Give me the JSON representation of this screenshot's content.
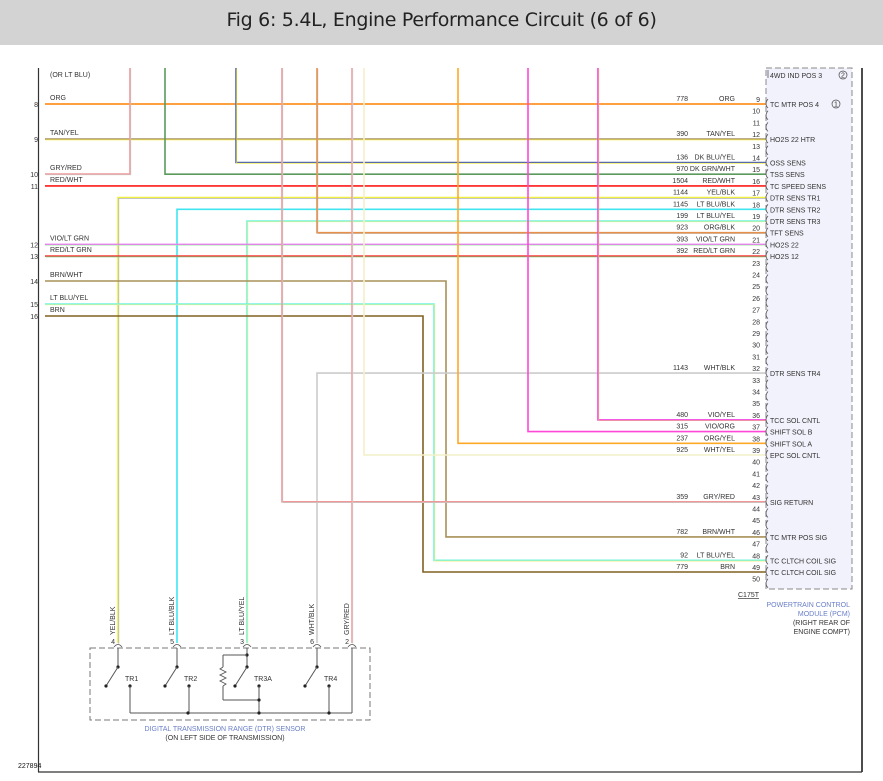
{
  "header": {
    "title": "Fig 6: 5.4L, Engine Performance Circuit (6 of 6)"
  },
  "figure_id": "227894",
  "top_note": "(OR LT BLU)",
  "pcm": {
    "connector": "C175T",
    "name_line1": "POWERTRAIN CONTROL",
    "name_line2": "MODULE (PCM)",
    "loc_line1": "(RIGHT REAR OF",
    "loc_line2": "ENGINE COMPT)",
    "top_pin_label": "4WD IND POS 3",
    "top_pin_note": "2",
    "pin_range": [
      9,
      50
    ],
    "pin_labels": [
      {
        "pin": 9,
        "label": "TC MTR POS 4",
        "note": "1"
      },
      {
        "pin": 12,
        "label": "HO2S 22 HTR"
      },
      {
        "pin": 14,
        "label": "OSS SENS"
      },
      {
        "pin": 15,
        "label": "TSS SENS"
      },
      {
        "pin": 16,
        "label": "TC SPEED SENS"
      },
      {
        "pin": 17,
        "label": "DTR SENS TR1"
      },
      {
        "pin": 18,
        "label": "DTR SENS TR2"
      },
      {
        "pin": 19,
        "label": "DTR SENS TR3"
      },
      {
        "pin": 20,
        "label": "TFT SENS"
      },
      {
        "pin": 21,
        "label": "HO2S 22"
      },
      {
        "pin": 22,
        "label": "HO2S 12"
      },
      {
        "pin": 32,
        "label": "DTR SENS TR4"
      },
      {
        "pin": 36,
        "label": "TCC SOL CNTL"
      },
      {
        "pin": 37,
        "label": "SHIFT SOL B"
      },
      {
        "pin": 38,
        "label": "SHIFT SOL A"
      },
      {
        "pin": 39,
        "label": "EPC SOL CNTL"
      },
      {
        "pin": 43,
        "label": "SIG RETURN"
      },
      {
        "pin": 46,
        "label": "TC MTR POS SIG"
      },
      {
        "pin": 48,
        "label": "TC CLTCH COIL SIG"
      },
      {
        "pin": 49,
        "label": "TC CLTCH COIL SIG"
      }
    ]
  },
  "sensor": {
    "name_line1": "DIGITAL TRANSMISSION RANGE (DTR) SENSOR",
    "name_line2": "(ON LEFT SIDE OF TRANSMISSION)",
    "switches": [
      "TR1",
      "TR2",
      "TR3A",
      "TR4"
    ]
  },
  "wires": [
    {
      "left_pin": "8",
      "left_label": "ORG",
      "circuit": "778",
      "color_label": "ORG",
      "pcm_pin": 9,
      "colors": [
        "#ff8000",
        "#ff8000"
      ]
    },
    {
      "left_pin": "9",
      "left_label": "TAN/YEL",
      "circuit": "390",
      "color_label": "TAN/YEL",
      "pcm_pin": 12,
      "colors": [
        "#a8906a",
        "#f4f040"
      ]
    },
    {
      "left_pin": "10",
      "left_label": "GRY/RED",
      "colors": [
        "#f09898",
        "#c8c8c8"
      ]
    },
    {
      "circuit": "970",
      "color_label": "DK GRN/WHT",
      "pcm_pin": 15,
      "colors": [
        "#5a9a5a",
        "#5a9a5a"
      ]
    },
    {
      "circuit": "136",
      "color_label": "DK BLU/YEL",
      "pcm_pin": 14,
      "colors": [
        "#5868a8",
        "#f0f040"
      ]
    },
    {
      "left_pin": "11",
      "left_label": "RED/WHT",
      "circuit": "1504",
      "color_label": "RED/WHT",
      "pcm_pin": 16,
      "colors": [
        "#ff1a1a",
        "#ff1a1a"
      ]
    },
    {
      "circuit": "1144",
      "color_label": "YEL/BLK",
      "pcm_pin": 17,
      "sensor_pin": "4",
      "sensor_label": "YEL/BLK",
      "colors": [
        "#f0f040",
        "#b0b0b0"
      ]
    },
    {
      "circuit": "1145",
      "color_label": "LT BLU/BLK",
      "pcm_pin": 18,
      "sensor_pin": "5",
      "sensor_label": "LT BLU/BLK",
      "colors": [
        "#40e4f0",
        "#40e4f0"
      ]
    },
    {
      "circuit": "199",
      "color_label": "LT BLU/YEL",
      "pcm_pin": 19,
      "sensor_pin": "3",
      "sensor_label": "LT BLU/YEL",
      "colors": [
        "#70f4e0",
        "#f0f080"
      ]
    },
    {
      "circuit": "923",
      "color_label": "ORG/BLK",
      "pcm_pin": 20,
      "colors": [
        "#e8904a",
        "#c8a890"
      ]
    },
    {
      "left_pin": "12",
      "left_label": "VIO/LT GRN",
      "circuit": "393",
      "color_label": "VIO/LT GRN",
      "pcm_pin": 21,
      "colors": [
        "#e878f0",
        "#a0f0a0"
      ]
    },
    {
      "left_pin": "13",
      "left_label": "RED/LT GRN",
      "circuit": "392",
      "color_label": "RED/LT GRN",
      "pcm_pin": 22,
      "colors": [
        "#ff3a3a",
        "#70c070"
      ]
    },
    {
      "left_pin": "14",
      "left_label": "BRN/WHT",
      "circuit": "782",
      "color_label": "BRN/WHT",
      "pcm_pin": 46,
      "colors": [
        "#a89058",
        "#a89058"
      ]
    },
    {
      "left_pin": "15",
      "left_label": "LT BLU/YEL",
      "circuit": "92",
      "color_label": "LT BLU/YEL",
      "pcm_pin": 48,
      "colors": [
        "#70f4e0",
        "#f0f080"
      ]
    },
    {
      "left_pin": "16",
      "left_label": "BRN",
      "circuit": "779",
      "color_label": "BRN",
      "pcm_pin": 49,
      "colors": [
        "#806020",
        "#806020"
      ]
    },
    {
      "circuit": "1143",
      "color_label": "WHT/BLK",
      "pcm_pin": 32,
      "sensor_pin": "6",
      "sensor_label": "WHT/BLK",
      "colors": [
        "#cccccc",
        "#cccccc"
      ]
    },
    {
      "circuit": "480",
      "color_label": "VIO/YEL",
      "pcm_pin": 36,
      "colors": [
        "#f040e0",
        "#f0c080"
      ]
    },
    {
      "circuit": "315",
      "color_label": "VIO/ORG",
      "pcm_pin": 37,
      "colors": [
        "#ff48d8",
        "#ff48d8"
      ]
    },
    {
      "circuit": "237",
      "color_label": "ORG/YEL",
      "pcm_pin": 38,
      "colors": [
        "#ffa828",
        "#ffa828"
      ]
    },
    {
      "circuit": "925",
      "color_label": "WHT/YEL",
      "pcm_pin": 39,
      "colors": [
        "#f4f0c8",
        "#f4f0c8"
      ]
    },
    {
      "circuit": "359",
      "color_label": "GRY/RED",
      "pcm_pin": 43,
      "colors": [
        "#f09898",
        "#c8c8c8"
      ]
    },
    {
      "sensor_pin": "2",
      "sensor_label": "GRY/RED",
      "colors": [
        "#f0a0a0",
        "#d0d0d0"
      ]
    }
  ]
}
